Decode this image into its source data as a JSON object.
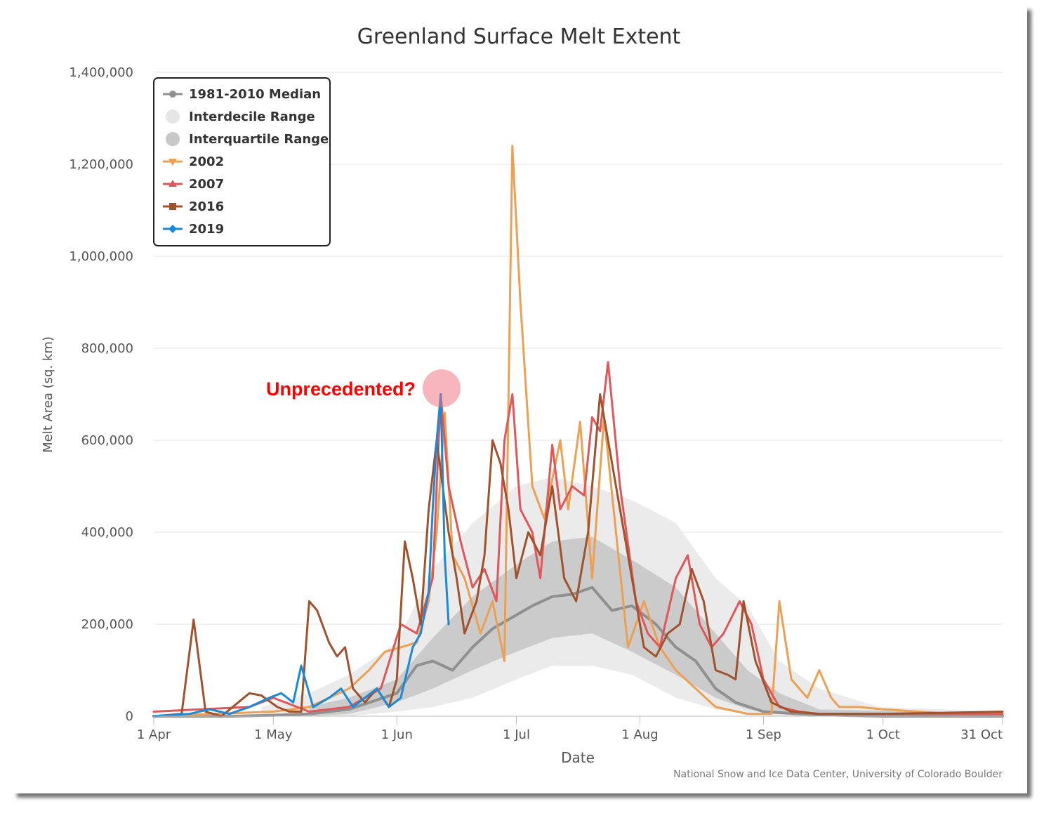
{
  "chart_data": {
    "type": "line",
    "title": "Greenland Surface Melt Extent",
    "xlabel": "Date",
    "ylabel": "Melt Area (sq. km)",
    "credit": "National Snow and Ice Data Center, University of Colorado Boulder",
    "annotation": "Unprecedented?",
    "x_axis_type": "date",
    "xlim": [
      "2000-04-01",
      "2000-10-31"
    ],
    "ylim": [
      0,
      1400000
    ],
    "grid": true,
    "legend_position": "top-left",
    "x_ticks": [
      {
        "date": "2000-04-01",
        "label": "1 Apr"
      },
      {
        "date": "2000-05-01",
        "label": "1 May"
      },
      {
        "date": "2000-06-01",
        "label": "1 Jun"
      },
      {
        "date": "2000-07-01",
        "label": "1 Jul"
      },
      {
        "date": "2000-08-01",
        "label": "1 Aug"
      },
      {
        "date": "2000-09-01",
        "label": "1 Sep"
      },
      {
        "date": "2000-10-01",
        "label": "1 Oct"
      },
      {
        "date": "2000-10-31",
        "label": "31 Oct"
      }
    ],
    "y_ticks": [
      {
        "value": 0,
        "label": "0"
      },
      {
        "value": 200000,
        "label": "200,000"
      },
      {
        "value": 400000,
        "label": "400,000"
      },
      {
        "value": 600000,
        "label": "600,000"
      },
      {
        "value": 800000,
        "label": "800,000"
      },
      {
        "value": 1000000,
        "label": "1,000,000"
      },
      {
        "value": 1200000,
        "label": "1,200,000"
      },
      {
        "value": 1400000,
        "label": "1,400,000"
      }
    ],
    "legend": [
      {
        "label": "1981-2010 Median",
        "color": "#909090",
        "marker": "circle"
      },
      {
        "label": "Interdecile Range",
        "color": "#e6e6e6",
        "marker": "big-circle"
      },
      {
        "label": "Interquartile Range",
        "color": "#c8c8c8",
        "marker": "big-circle"
      },
      {
        "label": "2002",
        "color": "#eca053",
        "marker": "triangle-down"
      },
      {
        "label": "2007",
        "color": "#e0575a",
        "marker": "triangle-up"
      },
      {
        "label": "2016",
        "color": "#a0522d",
        "marker": "square"
      },
      {
        "label": "2019",
        "color": "#1a8ad8",
        "marker": "diamond"
      }
    ],
    "interdecile_range": {
      "color": "#ebebeb",
      "x": [
        "2000-04-28",
        "2000-05-10",
        "2000-05-20",
        "2000-06-01",
        "2000-06-10",
        "2000-06-20",
        "2000-07-01",
        "2000-07-10",
        "2000-07-20",
        "2000-07-30",
        "2000-08-10",
        "2000-08-20",
        "2000-08-28",
        "2000-09-05",
        "2000-09-15",
        "2000-09-30",
        "2000-10-31"
      ],
      "low": [
        0,
        0,
        0,
        10000,
        20000,
        40000,
        80000,
        110000,
        110000,
        90000,
        40000,
        15000,
        5000,
        0,
        0,
        0,
        0
      ],
      "high": [
        20000,
        50000,
        90000,
        160000,
        320000,
        420000,
        500000,
        520000,
        500000,
        470000,
        420000,
        300000,
        240000,
        120000,
        60000,
        20000,
        10000
      ]
    },
    "interquartile_range": {
      "color": "#cbcbcb",
      "x": [
        "2000-05-10",
        "2000-05-20",
        "2000-06-01",
        "2000-06-10",
        "2000-06-20",
        "2000-07-01",
        "2000-07-10",
        "2000-07-20",
        "2000-07-30",
        "2000-08-10",
        "2000-08-20",
        "2000-08-28",
        "2000-09-05",
        "2000-09-15",
        "2000-10-31"
      ],
      "low": [
        0,
        5000,
        30000,
        60000,
        100000,
        140000,
        170000,
        180000,
        140000,
        90000,
        40000,
        15000,
        5000,
        0,
        0
      ],
      "high": [
        20000,
        40000,
        80000,
        170000,
        260000,
        330000,
        380000,
        390000,
        340000,
        280000,
        180000,
        100000,
        50000,
        15000,
        5000
      ]
    },
    "series": [
      {
        "name": "1981-2010 Median",
        "color": "#909090",
        "x": [
          "2000-04-01",
          "2000-04-20",
          "2000-05-01",
          "2000-05-10",
          "2000-05-20",
          "2000-06-01",
          "2000-06-06",
          "2000-06-10",
          "2000-06-15",
          "2000-06-20",
          "2000-06-25",
          "2000-07-01",
          "2000-07-05",
          "2000-07-10",
          "2000-07-15",
          "2000-07-20",
          "2000-07-25",
          "2000-07-30",
          "2000-08-05",
          "2000-08-10",
          "2000-08-15",
          "2000-08-20",
          "2000-08-25",
          "2000-09-01",
          "2000-09-10",
          "2000-09-20",
          "2000-10-01",
          "2000-10-31"
        ],
        "y": [
          0,
          0,
          2000,
          5000,
          15000,
          50000,
          110000,
          120000,
          100000,
          150000,
          190000,
          220000,
          240000,
          260000,
          265000,
          280000,
          230000,
          240000,
          200000,
          150000,
          120000,
          60000,
          30000,
          10000,
          5000,
          2000,
          0,
          0
        ]
      },
      {
        "name": "2002",
        "color": "#eca053",
        "x": [
          "2000-04-01",
          "2000-05-01",
          "2000-05-10",
          "2000-05-15",
          "2000-05-20",
          "2000-05-25",
          "2000-05-29",
          "2000-06-02",
          "2000-06-06",
          "2000-06-09",
          "2000-06-11",
          "2000-06-13",
          "2000-06-15",
          "2000-06-18",
          "2000-06-22",
          "2000-06-25",
          "2000-06-28",
          "2000-06-30",
          "2000-07-02",
          "2000-07-05",
          "2000-07-08",
          "2000-07-12",
          "2000-07-14",
          "2000-07-17",
          "2000-07-20",
          "2000-07-23",
          "2000-07-26",
          "2000-07-29",
          "2000-08-02",
          "2000-08-06",
          "2000-08-10",
          "2000-08-15",
          "2000-08-20",
          "2000-08-28",
          "2000-09-03",
          "2000-09-05",
          "2000-09-08",
          "2000-09-12",
          "2000-09-15",
          "2000-09-18",
          "2000-09-20",
          "2000-09-25",
          "2000-10-01",
          "2000-10-10",
          "2000-10-20",
          "2000-10-31"
        ],
        "y": [
          0,
          10000,
          20000,
          40000,
          60000,
          100000,
          140000,
          150000,
          160000,
          250000,
          400000,
          660000,
          350000,
          300000,
          180000,
          250000,
          120000,
          1240000,
          900000,
          500000,
          430000,
          600000,
          450000,
          640000,
          300000,
          650000,
          400000,
          150000,
          250000,
          150000,
          100000,
          60000,
          20000,
          5000,
          5000,
          250000,
          80000,
          40000,
          100000,
          40000,
          20000,
          20000,
          15000,
          10000,
          5000,
          5000
        ]
      },
      {
        "name": "2007",
        "color": "#e0575a",
        "x": [
          "2000-04-01",
          "2000-04-25",
          "2000-05-01",
          "2000-05-10",
          "2000-05-20",
          "2000-05-28",
          "2000-06-02",
          "2000-06-06",
          "2000-06-10",
          "2000-06-12",
          "2000-06-14",
          "2000-06-17",
          "2000-06-20",
          "2000-06-23",
          "2000-06-26",
          "2000-06-28",
          "2000-06-30",
          "2000-07-02",
          "2000-07-05",
          "2000-07-07",
          "2000-07-10",
          "2000-07-12",
          "2000-07-15",
          "2000-07-18",
          "2000-07-20",
          "2000-07-22",
          "2000-07-24",
          "2000-07-27",
          "2000-07-31",
          "2000-08-03",
          "2000-08-06",
          "2000-08-10",
          "2000-08-13",
          "2000-08-16",
          "2000-08-19",
          "2000-08-22",
          "2000-08-26",
          "2000-08-29",
          "2000-09-01",
          "2000-09-05",
          "2000-09-10",
          "2000-09-15",
          "2000-09-25",
          "2000-10-10",
          "2000-10-31"
        ],
        "y": [
          10000,
          20000,
          40000,
          10000,
          20000,
          60000,
          200000,
          180000,
          300000,
          700000,
          500000,
          380000,
          280000,
          320000,
          250000,
          600000,
          700000,
          450000,
          400000,
          300000,
          590000,
          450000,
          500000,
          480000,
          650000,
          620000,
          770000,
          500000,
          250000,
          180000,
          150000,
          300000,
          350000,
          200000,
          150000,
          180000,
          250000,
          200000,
          80000,
          20000,
          10000,
          5000,
          5000,
          5000,
          5000
        ]
      },
      {
        "name": "2016",
        "color": "#a0522d",
        "x": [
          "2000-04-01",
          "2000-04-08",
          "2000-04-11",
          "2000-04-14",
          "2000-04-18",
          "2000-04-25",
          "2000-04-28",
          "2000-05-02",
          "2000-05-05",
          "2000-05-08",
          "2000-05-10",
          "2000-05-12",
          "2000-05-15",
          "2000-05-17",
          "2000-05-19",
          "2000-05-21",
          "2000-05-24",
          "2000-05-27",
          "2000-05-30",
          "2000-06-01",
          "2000-06-03",
          "2000-06-05",
          "2000-06-07",
          "2000-06-09",
          "2000-06-11",
          "2000-06-14",
          "2000-06-16",
          "2000-06-18",
          "2000-06-21",
          "2000-06-23",
          "2000-06-25",
          "2000-06-27",
          "2000-06-29",
          "2000-07-01",
          "2000-07-04",
          "2000-07-07",
          "2000-07-10",
          "2000-07-13",
          "2000-07-16",
          "2000-07-19",
          "2000-07-22",
          "2000-07-24",
          "2000-07-26",
          "2000-07-28",
          "2000-07-30",
          "2000-08-02",
          "2000-08-05",
          "2000-08-08",
          "2000-08-11",
          "2000-08-14",
          "2000-08-17",
          "2000-08-20",
          "2000-08-23",
          "2000-08-25",
          "2000-08-27",
          "2000-08-30",
          "2000-09-03",
          "2000-09-08",
          "2000-09-15",
          "2000-10-01",
          "2000-10-31"
        ],
        "y": [
          0,
          5000,
          210000,
          10000,
          0,
          50000,
          45000,
          20000,
          10000,
          10000,
          250000,
          230000,
          160000,
          130000,
          150000,
          60000,
          30000,
          60000,
          20000,
          80000,
          380000,
          300000,
          200000,
          450000,
          600000,
          400000,
          300000,
          180000,
          250000,
          350000,
          600000,
          550000,
          450000,
          300000,
          400000,
          350000,
          500000,
          300000,
          250000,
          400000,
          700000,
          600000,
          500000,
          400000,
          300000,
          150000,
          130000,
          180000,
          200000,
          320000,
          250000,
          100000,
          90000,
          80000,
          250000,
          120000,
          30000,
          10000,
          5000,
          5000,
          10000
        ]
      },
      {
        "name": "2019",
        "color": "#1a8ad8",
        "x": [
          "2000-04-01",
          "2000-04-10",
          "2000-04-15",
          "2000-04-20",
          "2000-04-25",
          "2000-04-30",
          "2000-05-03",
          "2000-05-06",
          "2000-05-08",
          "2000-05-11",
          "2000-05-15",
          "2000-05-18",
          "2000-05-21",
          "2000-05-24",
          "2000-05-27",
          "2000-05-30",
          "2000-06-02",
          "2000-06-05",
          "2000-06-07",
          "2000-06-09",
          "2000-06-10",
          "2000-06-11",
          "2000-06-12",
          "2000-06-13",
          "2000-06-14"
        ],
        "y": [
          0,
          5000,
          15000,
          5000,
          20000,
          40000,
          50000,
          30000,
          110000,
          20000,
          40000,
          60000,
          20000,
          40000,
          60000,
          20000,
          40000,
          150000,
          180000,
          270000,
          450000,
          600000,
          700000,
          350000,
          200000
        ]
      }
    ]
  }
}
